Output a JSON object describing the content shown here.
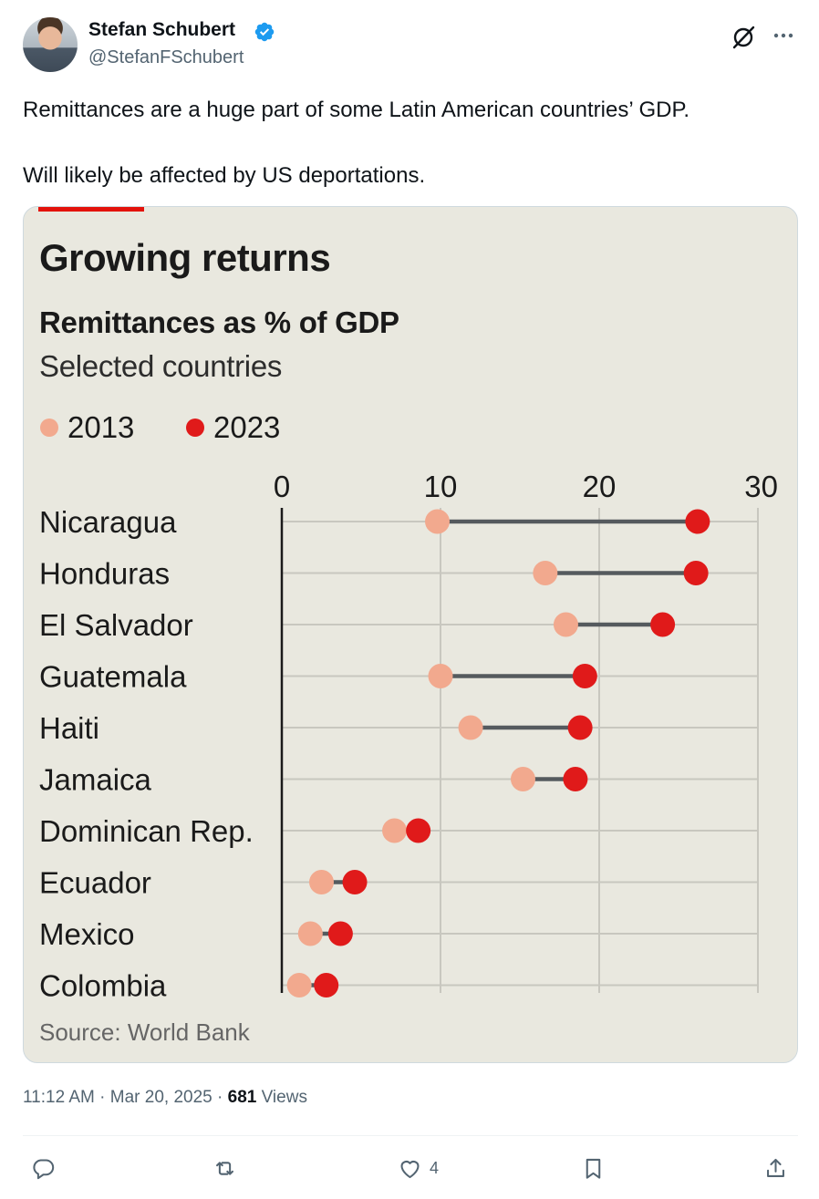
{
  "author": {
    "name": "Stefan Schubert",
    "handle": "@StefanFSchubert"
  },
  "tweet": {
    "text_line1": "Remittances are a huge part of some Latin American countries’ GDP.",
    "text_line2": "Will likely be affected by US deportations."
  },
  "meta": {
    "time": "11:12 AM",
    "separator1": " · ",
    "date": "Mar 20, 2025",
    "separator2": " · ",
    "views": "681",
    "views_label": " Views"
  },
  "actions": {
    "reply_count": "",
    "retweet_count": "",
    "like_count": "4",
    "bookmark_count": ""
  },
  "colors": {
    "accent_red": "#e3120b",
    "dot_2013": "#f2a98e",
    "dot_2023": "#e01a1a",
    "connector": "#555a5e",
    "chart_bg": "#e9e8df",
    "verified_blue": "#1d9bf0"
  },
  "icons": {
    "verified": "verified-badge-icon",
    "grok": "grok-icon",
    "more": "more-icon",
    "reply": "reply-icon",
    "retweet": "retweet-icon",
    "like": "heart-icon",
    "bookmark": "bookmark-icon",
    "share": "share-icon"
  },
  "chart_data": {
    "type": "dumbbell",
    "title": "Growing returns",
    "subtitle": "Remittances as % of GDP",
    "subsubtitle": "Selected countries",
    "source": "Source: World Bank",
    "series": [
      {
        "name": "2013",
        "color": "#f2a98e"
      },
      {
        "name": "2023",
        "color": "#e01a1a"
      }
    ],
    "xlim": [
      0,
      30
    ],
    "xticks": [
      "0",
      "10",
      "20",
      "30"
    ],
    "grid": true,
    "legend_position": "top-left",
    "categories": [
      "Nicaragua",
      "Honduras",
      "El Salvador",
      "Guatemala",
      "Haiti",
      "Jamaica",
      "Dominican Rep.",
      "Ecuador",
      "Mexico",
      "Colombia"
    ],
    "values_2013": [
      9.8,
      16.6,
      17.9,
      10.0,
      11.9,
      15.2,
      7.1,
      2.5,
      1.8,
      1.1
    ],
    "values_2023": [
      26.2,
      26.1,
      24.0,
      19.1,
      18.8,
      18.5,
      8.6,
      4.6,
      3.7,
      2.8
    ]
  }
}
